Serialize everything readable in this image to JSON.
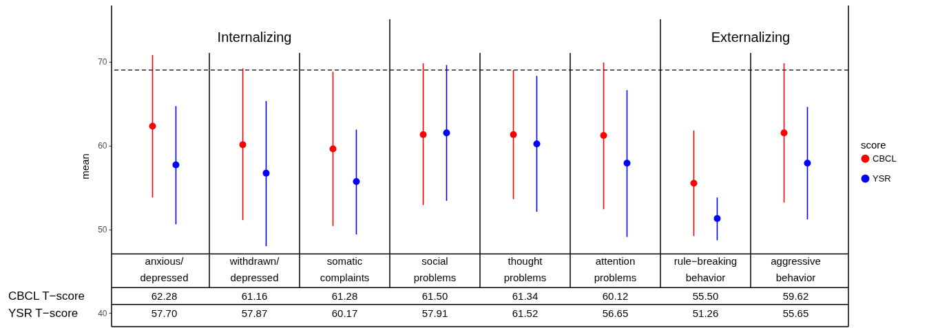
{
  "chart_data": {
    "type": "scatter",
    "ylabel": "mean",
    "legend_title": "score",
    "legend": "right",
    "marker": "circle",
    "categories": [
      "anxious/depressed",
      "withdrawn/depressed",
      "somatic complaints",
      "social problems",
      "thought problems",
      "attention problems",
      "rule−breaking behavior",
      "aggressive behavior"
    ],
    "ylim": [
      38.4,
      76.7
    ],
    "yticks": [
      40,
      50,
      60,
      70
    ],
    "series": [
      {
        "name": "CBCL",
        "color": "#ff0000",
        "values": [
          62.3,
          60.1,
          59.6,
          61.3,
          61.3,
          61.2,
          55.5,
          61.5
        ],
        "errors": [
          [
            53.8,
            70.8
          ],
          [
            51.1,
            69.2
          ],
          [
            50.4,
            68.8
          ],
          [
            52.9,
            69.8
          ],
          [
            53.6,
            69.0
          ],
          [
            52.4,
            69.9
          ],
          [
            49.2,
            61.8
          ],
          [
            53.2,
            69.8
          ]
        ]
      },
      {
        "name": "YSR",
        "color": "#0000ff",
        "values": [
          57.7,
          56.7,
          55.7,
          61.5,
          60.2,
          57.9,
          51.3,
          57.9
        ],
        "errors": [
          [
            50.6,
            64.7
          ],
          [
            48.0,
            65.3
          ],
          [
            49.4,
            61.9
          ],
          [
            53.4,
            69.6
          ],
          [
            52.1,
            68.3
          ],
          [
            49.1,
            66.6
          ],
          [
            48.7,
            53.8
          ],
          [
            51.2,
            64.6
          ]
        ]
      }
    ],
    "ref_lines": [
      {
        "axis": "y",
        "value": 69,
        "line_style": "dashed",
        "color": "#000000"
      }
    ],
    "annotations": [
      "Internalizing",
      "Externalizing",
      "CBCL T−score",
      "YSR T−score",
      "62.28",
      "61.16",
      "61.28",
      "61.50",
      "61.34",
      "60.12",
      "55.50",
      "59.62",
      "57.70",
      "57.87",
      "60.17",
      "57.91",
      "61.52",
      "56.65",
      "51.26",
      "55.65"
    ]
  }
}
